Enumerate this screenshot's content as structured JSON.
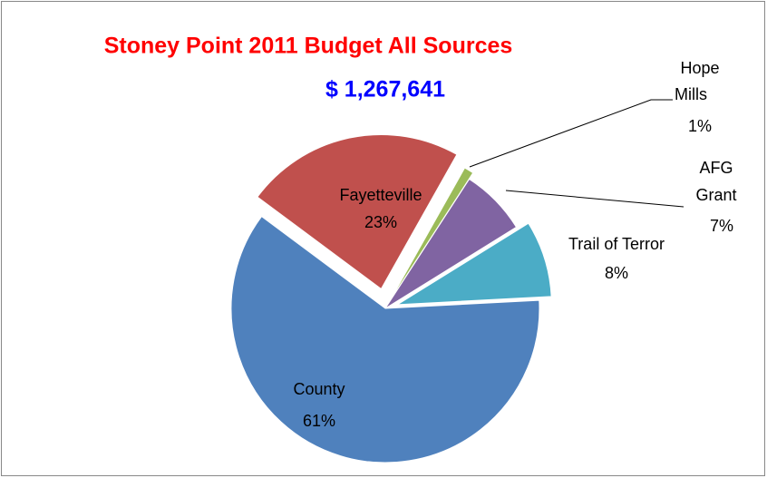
{
  "chart_data": {
    "type": "pie",
    "title": "Stoney Point 2011 Budget All Sources",
    "subtitle": "$ 1,267,641",
    "categories": [
      "County",
      "Fayetteville",
      "Hope Mills",
      "AFG Grant",
      "Trail of Terror"
    ],
    "values": [
      61,
      23,
      1,
      7,
      8
    ],
    "value_labels": [
      "61%",
      "23%",
      "1%",
      "7%",
      "8%"
    ],
    "colors": [
      "#4f81bd",
      "#c0504d",
      "#9bbb59",
      "#8064a2",
      "#4bacc6"
    ]
  }
}
